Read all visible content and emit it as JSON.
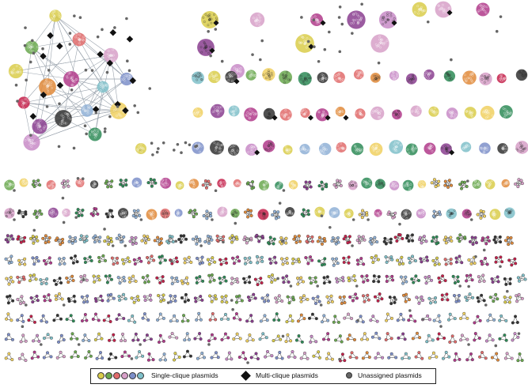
{
  "palette": [
    "#d9cc4a",
    "#6aa84f",
    "#e06b6b",
    "#d7a0c8",
    "#7d8fc9",
    "#7fc0c9",
    "#b03a8a",
    "#e08a3a",
    "#c4204a",
    "#8a3e8f",
    "#333333",
    "#8fb0d6",
    "#c88bc7",
    "#2e8b57",
    "#f0d060"
  ],
  "colors": {
    "multi": "#111111",
    "unassigned": "#666666",
    "edge": "#9aa3ad"
  },
  "legend": {
    "single_label": "Single-clique plasmids",
    "single_colors": [
      "#d9cc4a",
      "#6aa84f",
      "#e06b6b",
      "#d7a0c8",
      "#7d8fc9",
      "#7fc0c9"
    ],
    "multi_label": "Multi-clique plasmids",
    "unassigned_label": "Unassigned plasmids"
  }
}
